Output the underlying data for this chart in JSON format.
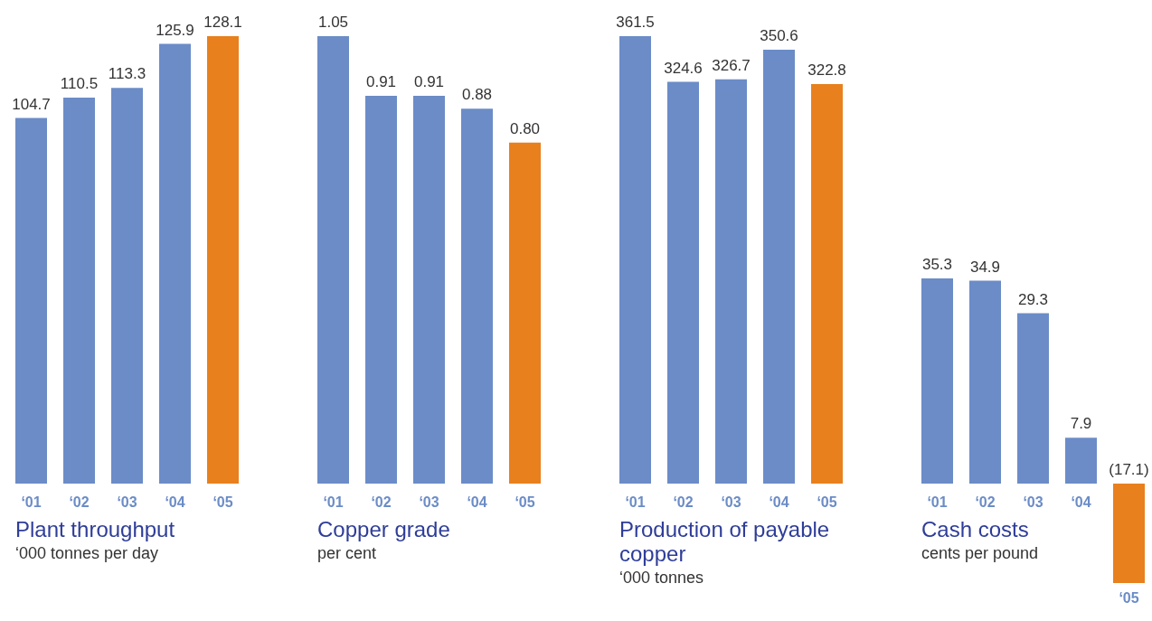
{
  "chart_data": [
    {
      "type": "bar",
      "title": "Plant throughput",
      "subtitle": "‘000 tonnes per day",
      "categories": [
        "‘01",
        "‘02",
        "‘03",
        "‘04",
        "‘05"
      ],
      "values": [
        104.7,
        110.5,
        113.3,
        125.9,
        128.1
      ],
      "colors": [
        "#6b8cc7",
        "#6b8cc7",
        "#6b8cc7",
        "#6b8cc7",
        "#e8801e"
      ],
      "value_labels": [
        "104.7",
        "110.5",
        "113.3",
        "125.9",
        "128.1"
      ]
    },
    {
      "type": "bar",
      "title": "Copper grade",
      "subtitle": "per cent",
      "categories": [
        "‘01",
        "‘02",
        "‘03",
        "‘04",
        "‘05"
      ],
      "values": [
        1.05,
        0.91,
        0.91,
        0.88,
        0.8
      ],
      "colors": [
        "#6b8cc7",
        "#6b8cc7",
        "#6b8cc7",
        "#6b8cc7",
        "#e8801e"
      ],
      "value_labels": [
        "1.05",
        "0.91",
        "0.91",
        "0.88",
        "0.80"
      ]
    },
    {
      "type": "bar",
      "title": "Production of payable copper",
      "subtitle": "‘000 tonnes",
      "categories": [
        "‘01",
        "‘02",
        "‘03",
        "‘04",
        "‘05"
      ],
      "values": [
        361.5,
        324.6,
        326.7,
        350.6,
        322.8
      ],
      "colors": [
        "#6b8cc7",
        "#6b8cc7",
        "#6b8cc7",
        "#6b8cc7",
        "#e8801e"
      ],
      "value_labels": [
        "361.5",
        "324.6",
        "326.7",
        "350.6",
        "322.8"
      ]
    },
    {
      "type": "bar",
      "title": "Cash costs",
      "subtitle": "cents per pound",
      "categories": [
        "‘01",
        "‘02",
        "‘03",
        "‘04",
        "‘05"
      ],
      "values": [
        35.3,
        34.9,
        29.3,
        7.9,
        -17.1
      ],
      "colors": [
        "#6b8cc7",
        "#6b8cc7",
        "#6b8cc7",
        "#6b8cc7",
        "#e8801e"
      ],
      "value_labels": [
        "35.3",
        "34.9",
        "29.3",
        "7.9",
        "(17.1)"
      ]
    }
  ]
}
